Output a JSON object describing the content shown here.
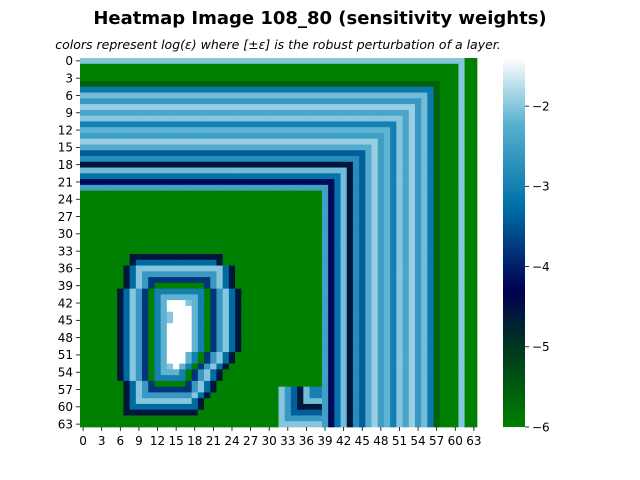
{
  "chart_data": {
    "type": "heatmap",
    "title": "Heatmap Image 108_80 (sensitivity weights)",
    "subtitle": "colors represent log(ε) where [±ε] is the robust perturbation of a layer.",
    "rows": 64,
    "cols": 64,
    "xticks": [
      "0",
      "3",
      "6",
      "9",
      "12",
      "15",
      "18",
      "21",
      "24",
      "27",
      "30",
      "33",
      "36",
      "39",
      "42",
      "45",
      "48",
      "51",
      "54",
      "57",
      "60",
      "63"
    ],
    "yticks": [
      "0",
      "3",
      "6",
      "9",
      "12",
      "15",
      "18",
      "21",
      "24",
      "27",
      "30",
      "33",
      "36",
      "39",
      "42",
      "45",
      "48",
      "51",
      "54",
      "57",
      "60",
      "63"
    ],
    "colorbar": {
      "vmin": -6,
      "vmax": -1.4,
      "ticks": [
        "−2",
        "−3",
        "−4",
        "−5",
        "−6"
      ]
    },
    "colormap": [
      "#008000",
      "#003c1c",
      "#000050",
      "#0070a8",
      "#58b0d0",
      "#ffffff"
    ],
    "regions": {
      "outer_frame_value": -2.0,
      "frame_band_values": [
        -5.6,
        -3.1,
        -2.1,
        -2.6,
        -1.9,
        -2.4,
        -2.0,
        -3.0,
        -2.2,
        -2.5,
        -1.9,
        -2.3,
        -3.4,
        -2.8,
        -4.6,
        -2.1,
        -3.2,
        -4.2,
        -2.5
      ],
      "figure_band_values": [
        -4.6,
        -3.3,
        -2.0,
        -2.6,
        -3.8,
        -6.0,
        -3.0,
        -2.2
      ],
      "figure_core_value": -1.4,
      "figure_spots_value": -2.0,
      "background_value": -6.0
    }
  }
}
